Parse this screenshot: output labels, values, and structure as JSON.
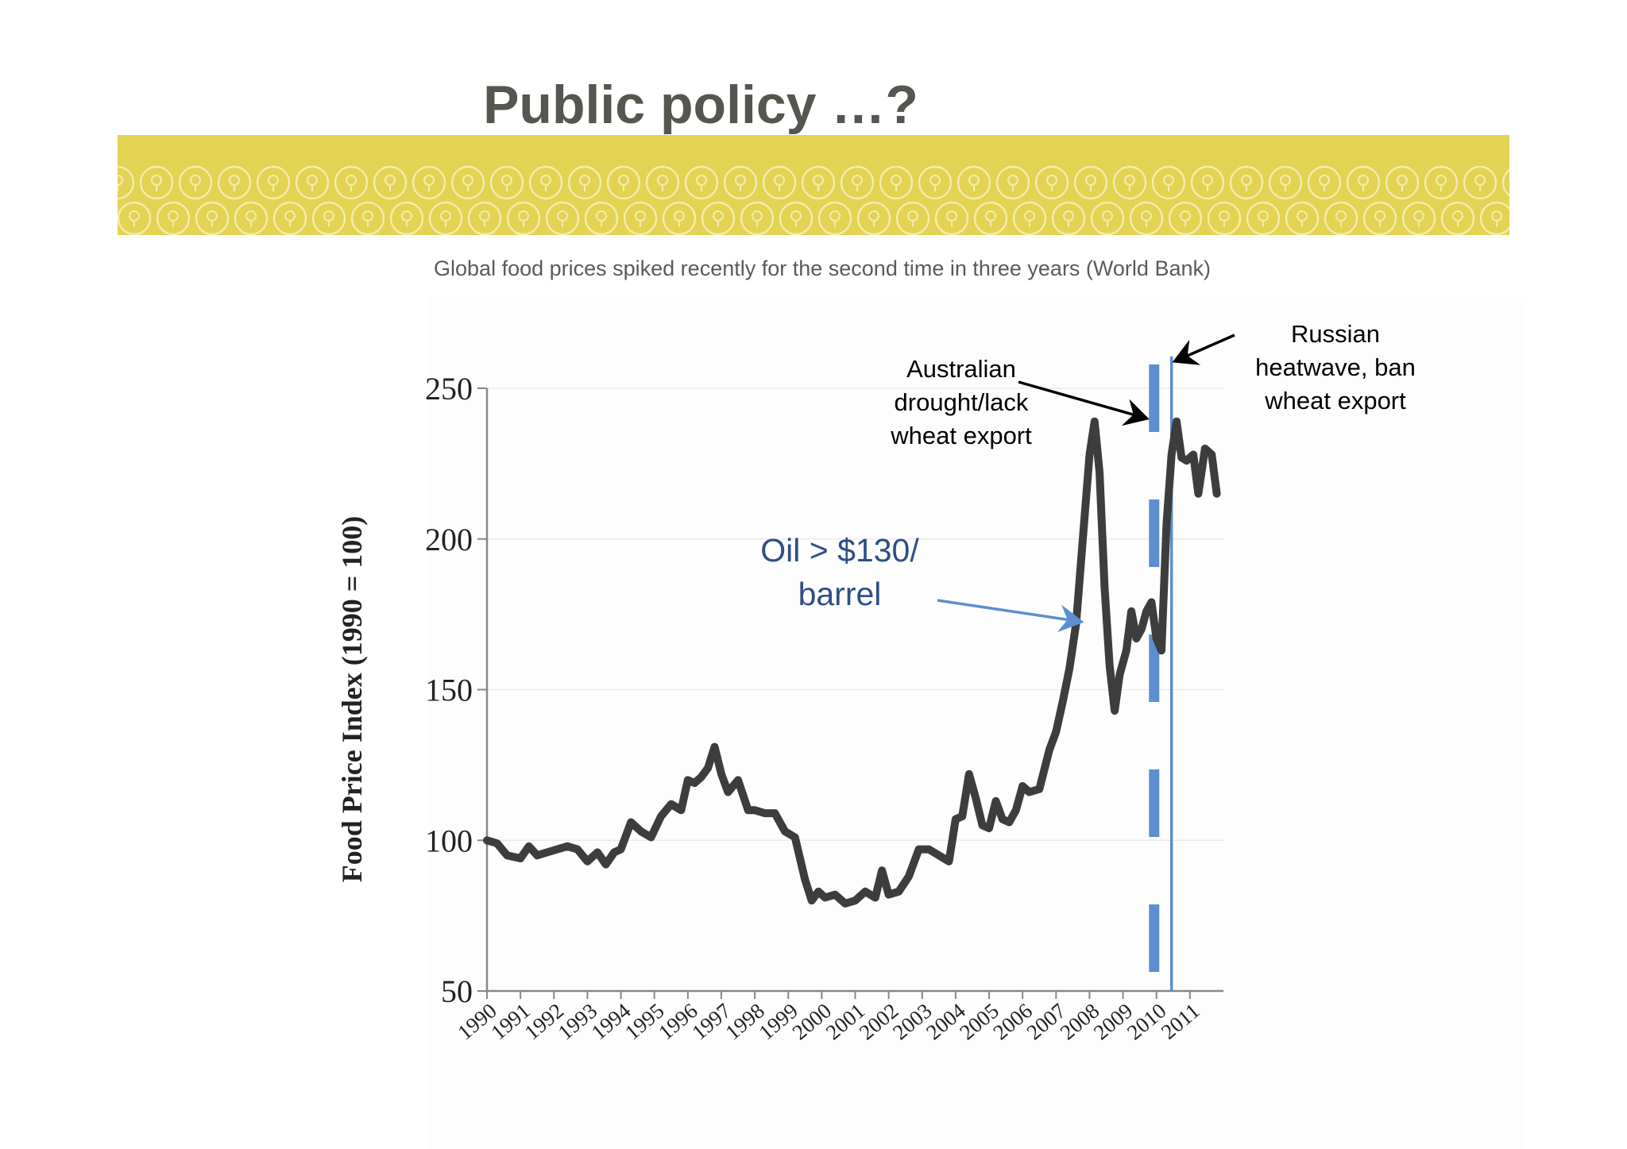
{
  "slide": {
    "title": "Public policy …?",
    "subtitle": "Global food prices spiked recently for the second time in three years  (World Bank)"
  },
  "colors": {
    "banner": "#e3d353",
    "title": "#55564f",
    "series_line": "#3d3d3d",
    "annotation_blue": "#2e4e86",
    "marker_blue": "#5b8fcf",
    "arrow_black": "#000000"
  },
  "chart_data": {
    "type": "line",
    "title": "",
    "xlabel": "",
    "ylabel": "Food Price Index (1990 = 100)",
    "ylim": [
      50,
      250
    ],
    "xlim": [
      1990,
      2012
    ],
    "yticks": [
      50,
      100,
      150,
      200,
      250
    ],
    "x_tick_labels": [
      "1990",
      "1991",
      "1992",
      "1993",
      "1994",
      "1995",
      "1996",
      "1997",
      "1998",
      "1999",
      "2000",
      "2001",
      "2002",
      "2003",
      "2004",
      "2005",
      "2006",
      "2007",
      "2008",
      "2009",
      "2010",
      "2011"
    ],
    "grid": true,
    "series": [
      {
        "x": [
          1990.0,
          1990.3,
          1990.6,
          1991.0,
          1991.25,
          1991.5,
          1991.8,
          1992.1,
          1992.4,
          1992.7,
          1993.0,
          1993.3,
          1993.55,
          1993.8,
          1994.0,
          1994.3,
          1994.6,
          1994.9,
          1995.2,
          1995.5,
          1995.8,
          1996.0,
          1996.2,
          1996.4,
          1996.6,
          1996.8,
          1997.0,
          1997.2,
          1997.5,
          1997.8,
          1998.0,
          1998.3,
          1998.6,
          1998.9,
          1999.2,
          1999.5,
          1999.7,
          1999.9,
          2000.1,
          2000.4,
          2000.7,
          2001.0,
          2001.3,
          2001.6,
          2001.8,
          2002.0,
          2002.3,
          2002.6,
          2002.9,
          2003.2,
          2003.5,
          2003.8,
          2004.0,
          2004.2,
          2004.4,
          2004.6,
          2004.8,
          2005.0,
          2005.2,
          2005.4,
          2005.6,
          2005.8,
          2006.0,
          2006.2,
          2006.5,
          2006.8,
          2007.0,
          2007.2,
          2007.4,
          2007.6,
          2007.8,
          2008.0,
          2008.15,
          2008.3,
          2008.45,
          2008.6,
          2008.75,
          2008.9,
          2009.1,
          2009.25,
          2009.4,
          2009.55,
          2009.7,
          2009.85,
          2010.0,
          2010.15,
          2010.3,
          2010.45,
          2010.6,
          2010.75,
          2010.9,
          2011.1,
          2011.25,
          2011.45,
          2011.65,
          2011.8
        ],
        "y": [
          100,
          99,
          95,
          94,
          98,
          95,
          96,
          97,
          98,
          97,
          93,
          96,
          92,
          96,
          97,
          106,
          103,
          101,
          108,
          112,
          110,
          120,
          119,
          121,
          124,
          131,
          122,
          116,
          120,
          110,
          110,
          109,
          109,
          103,
          101,
          87,
          80,
          83,
          81,
          82,
          79,
          80,
          83,
          81,
          90,
          82,
          83,
          88,
          97,
          97,
          95,
          93,
          107,
          108,
          122,
          114,
          105,
          104,
          113,
          107,
          106,
          110,
          118,
          116,
          117,
          130,
          136,
          146,
          157,
          172,
          200,
          228,
          239,
          222,
          184,
          158,
          143,
          155,
          163,
          176,
          167,
          170,
          176,
          179,
          167,
          163,
          205,
          228,
          239,
          227,
          226,
          228,
          215,
          230,
          228,
          215
        ],
        "color": "#3d3d3d"
      }
    ],
    "annotations": [
      {
        "text": [
          "Australian",
          "drought/lack",
          "wheat export"
        ],
        "color": "#000000"
      },
      {
        "text": [
          "Oil > $130/",
          "barrel"
        ],
        "color": "#2e4e86"
      },
      {
        "text": [
          "Russian",
          "heatwave, ban",
          "wheat export"
        ],
        "color": "#000000"
      }
    ],
    "markers": [
      {
        "kind": "dashed-vertical",
        "x": 2009.93,
        "color": "#5b8fcf"
      },
      {
        "kind": "solid-vertical",
        "x": 2010.45,
        "color": "#5b8fcf"
      }
    ]
  }
}
